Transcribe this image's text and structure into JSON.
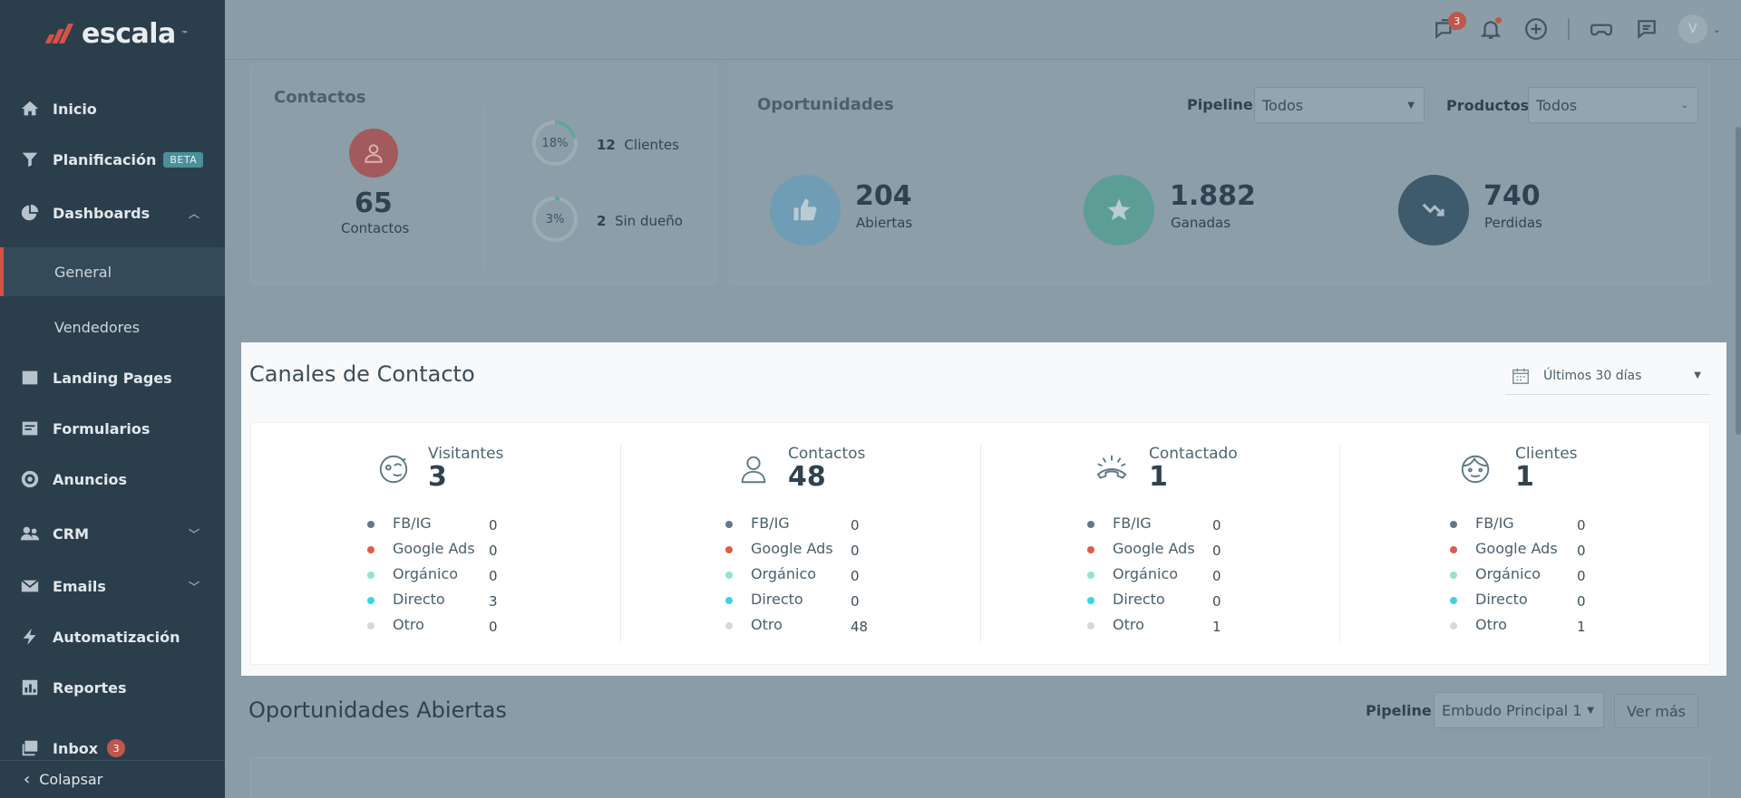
{
  "brand": {
    "name": "escala",
    "tm": "™"
  },
  "sidebar": {
    "items": [
      {
        "label": "Inicio",
        "icon": "home-icon"
      },
      {
        "label": "Planificación",
        "badge": "BETA",
        "icon": "funnel-icon"
      },
      {
        "label": "Dashboards",
        "icon": "pie-chart-icon",
        "chevron": "^"
      },
      {
        "label": "General",
        "active": true
      },
      {
        "label": "Vendedores"
      },
      {
        "label": "Landing Pages",
        "icon": "browser-icon"
      },
      {
        "label": "Formularios",
        "icon": "form-icon"
      },
      {
        "label": "Anuncios",
        "icon": "target-icon"
      },
      {
        "label": "CRM",
        "icon": "people-icon",
        "chevron": "v"
      },
      {
        "label": "Emails",
        "icon": "envelope-icon",
        "chevron": "v"
      },
      {
        "label": "Automatización",
        "icon": "bolt-icon"
      },
      {
        "label": "Reportes",
        "icon": "report-icon"
      },
      {
        "label": "Inbox",
        "icon": "inbox-icon",
        "badge": "3"
      }
    ],
    "collapse_label": "Colapsar"
  },
  "topbar": {
    "chat_badge": "3",
    "avatar_initial": "V"
  },
  "contactos_panel": {
    "title": "Contactos",
    "total": "65",
    "total_label": "Contactos",
    "clientes_pct": "18%",
    "clientes_count": "12",
    "clientes_label": "Clientes",
    "sin_dueno_pct": "3%",
    "sin_dueno_count": "2",
    "sin_dueno_label": "Sin dueño"
  },
  "oportunidades_panel": {
    "title": "Oportunidades",
    "pipeline_label": "Pipeline",
    "pipeline_value": "Todos",
    "productos_label": "Productos",
    "productos_value": "Todos",
    "abiertas": "204",
    "abiertas_label": "Abiertas",
    "ganadas": "1.882",
    "ganadas_label": "Ganadas",
    "perdidas": "740",
    "perdidas_label": "Perdidas"
  },
  "canales": {
    "title": "Canales de Contacto",
    "date_range": "Últimos 30 días",
    "source_colors": {
      "FB/IG": "#5f7a8c",
      "Google Ads": "#e05a4f",
      "Orgánico": "#8fe3cf",
      "Directo": "#3ed3e0",
      "Otro": "#d5d9dc"
    },
    "channels": [
      {
        "name": "Visitantes",
        "total": "3",
        "icon": "visitor-face-icon",
        "rows": [
          {
            "source": "FB/IG",
            "value": "0"
          },
          {
            "source": "Google Ads",
            "value": "0"
          },
          {
            "source": "Orgánico",
            "value": "0"
          },
          {
            "source": "Directo",
            "value": "3"
          },
          {
            "source": "Otro",
            "value": "0"
          }
        ]
      },
      {
        "name": "Contactos",
        "total": "48",
        "icon": "person-icon",
        "rows": [
          {
            "source": "FB/IG",
            "value": "0"
          },
          {
            "source": "Google Ads",
            "value": "0"
          },
          {
            "source": "Orgánico",
            "value": "0"
          },
          {
            "source": "Directo",
            "value": "0"
          },
          {
            "source": "Otro",
            "value": "48"
          }
        ]
      },
      {
        "name": "Contactado",
        "total": "1",
        "icon": "ringing-phone-icon",
        "rows": [
          {
            "source": "FB/IG",
            "value": "0"
          },
          {
            "source": "Google Ads",
            "value": "0"
          },
          {
            "source": "Orgánico",
            "value": "0"
          },
          {
            "source": "Directo",
            "value": "0"
          },
          {
            "source": "Otro",
            "value": "1"
          }
        ]
      },
      {
        "name": "Clientes",
        "total": "1",
        "icon": "client-face-icon",
        "rows": [
          {
            "source": "FB/IG",
            "value": "0"
          },
          {
            "source": "Google Ads",
            "value": "0"
          },
          {
            "source": "Orgánico",
            "value": "0"
          },
          {
            "source": "Directo",
            "value": "0"
          },
          {
            "source": "Otro",
            "value": "1"
          }
        ]
      }
    ]
  },
  "oportunidades_abiertas": {
    "title": "Oportunidades Abiertas",
    "pipeline_label": "Pipeline",
    "pipeline_value": "Embudo Principal 1",
    "ver_mas": "Ver más"
  }
}
